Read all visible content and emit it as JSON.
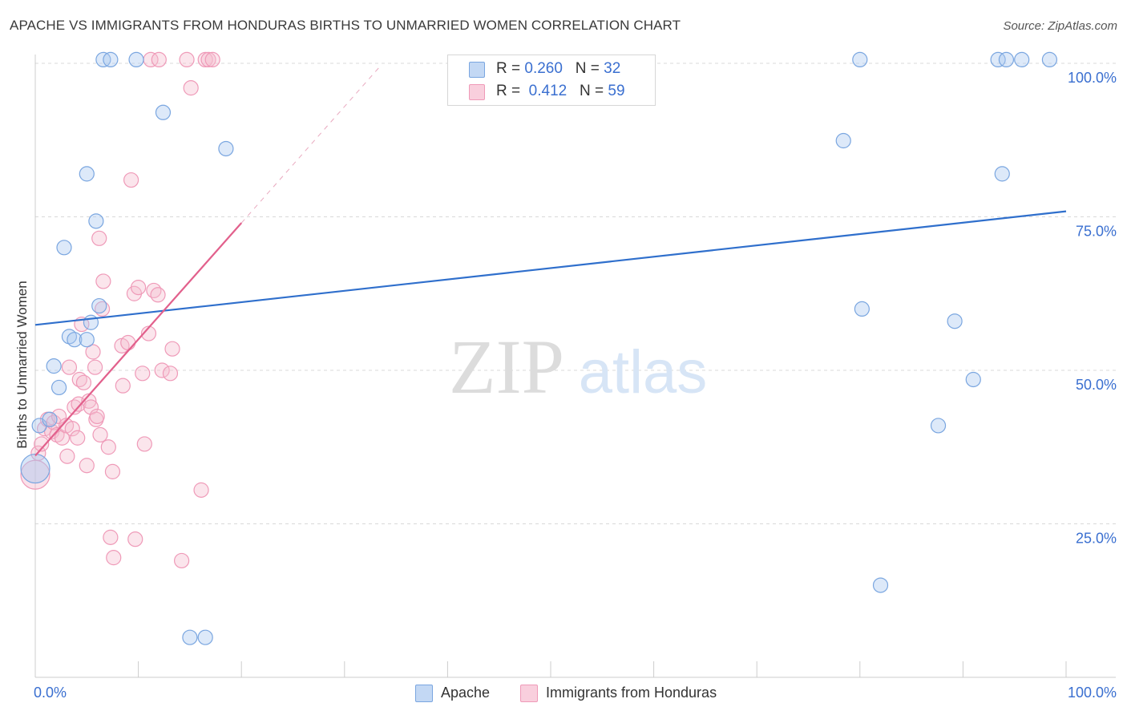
{
  "title": "APACHE VS IMMIGRANTS FROM HONDURAS BIRTHS TO UNMARRIED WOMEN CORRELATION CHART",
  "source": "Source: ZipAtlas.com",
  "watermark": {
    "part1": "ZIP",
    "part2": "atlas"
  },
  "legend_top": {
    "rows": [
      {
        "r_label": "R = ",
        "r_value": "0.260",
        "n_label": "N = ",
        "n_value": "32"
      },
      {
        "r_label": "R = ",
        "r_value": "0.412",
        "n_label": "N = ",
        "n_value": "59"
      }
    ]
  },
  "legend_bottom": [
    {
      "label": "Apache"
    },
    {
      "label": "Immigrants from Honduras"
    }
  ],
  "colors": {
    "apache_fill": "#a9c8f0",
    "apache_stroke": "#7aa6e0",
    "apache_line": "#2f6fcc",
    "honduras_fill": "#f6bdd0",
    "honduras_stroke": "#ef9ab8",
    "honduras_line": "#e2608c",
    "tick_label": "#3a6fd0",
    "grid": "#d9d9d9"
  },
  "chart_data": {
    "type": "scatter",
    "xlabel": "",
    "ylabel": "Births to Unmarried Women",
    "xlim": [
      0,
      100
    ],
    "ylim": [
      0,
      100
    ],
    "x_tick_labels": [
      {
        "value": 0,
        "label": "0.0%"
      },
      {
        "value": 100,
        "label": "100.0%"
      }
    ],
    "y_tick_labels": [
      {
        "value": 25,
        "label": "25.0%"
      },
      {
        "value": 50,
        "label": "50.0%"
      },
      {
        "value": 75,
        "label": "75.0%"
      },
      {
        "value": 100,
        "label": "100.0%"
      }
    ],
    "grid": true,
    "legend_position": "top-center",
    "series": [
      {
        "name": "Apache",
        "r": 0.26,
        "n": 32,
        "trend": {
          "x": [
            0,
            100
          ],
          "y": [
            57.4,
            75.9
          ]
        },
        "points": [
          [
            0,
            34
          ],
          [
            0.4,
            41
          ],
          [
            1.4,
            42
          ],
          [
            1.8,
            50.7
          ],
          [
            2.3,
            47.2
          ],
          [
            2.8,
            70
          ],
          [
            3.3,
            55.5
          ],
          [
            3.8,
            55
          ],
          [
            5.0,
            55
          ],
          [
            5.0,
            82
          ],
          [
            5.4,
            57.8
          ],
          [
            5.9,
            74.3
          ],
          [
            6.2,
            60.5
          ],
          [
            6.6,
            100.6
          ],
          [
            7.3,
            100.6
          ],
          [
            9.8,
            100.6
          ],
          [
            12.4,
            92
          ],
          [
            15.0,
            6.5
          ],
          [
            16.5,
            6.5
          ],
          [
            18.5,
            86.1
          ],
          [
            78.4,
            87.4
          ],
          [
            80.0,
            100.6
          ],
          [
            80.2,
            60
          ],
          [
            82.0,
            15
          ],
          [
            87.6,
            41
          ],
          [
            89.2,
            58
          ],
          [
            91.0,
            48.5
          ],
          [
            93.4,
            100.6
          ],
          [
            93.8,
            82
          ],
          [
            94.2,
            100.6
          ],
          [
            95.7,
            100.6
          ],
          [
            98.4,
            100.6
          ]
        ]
      },
      {
        "name": "Immigrants from Honduras",
        "r": 0.412,
        "n": 59,
        "trend": {
          "x": [
            0,
            20
          ],
          "y": [
            36.1,
            74.0
          ],
          "dash_x": [
            20,
            33.5
          ],
          "dash_y": [
            74.0,
            99.6
          ]
        },
        "points": [
          [
            0,
            33
          ],
          [
            0.3,
            36.5
          ],
          [
            0.6,
            38
          ],
          [
            0.9,
            40.5
          ],
          [
            1.2,
            42
          ],
          [
            1.6,
            40
          ],
          [
            1.8,
            41.5
          ],
          [
            2.1,
            39.5
          ],
          [
            2.3,
            42.5
          ],
          [
            2.6,
            39
          ],
          [
            3.0,
            41
          ],
          [
            3.1,
            36
          ],
          [
            3.3,
            50.5
          ],
          [
            3.6,
            40.5
          ],
          [
            3.8,
            44
          ],
          [
            4.1,
            39
          ],
          [
            4.2,
            44.5
          ],
          [
            4.3,
            48.5
          ],
          [
            4.5,
            57.5
          ],
          [
            4.7,
            48
          ],
          [
            5.0,
            34.5
          ],
          [
            5.2,
            45
          ],
          [
            5.4,
            44
          ],
          [
            5.6,
            53
          ],
          [
            5.8,
            50.5
          ],
          [
            5.9,
            42
          ],
          [
            6.0,
            42.5
          ],
          [
            6.2,
            71.5
          ],
          [
            6.3,
            39.5
          ],
          [
            6.5,
            60
          ],
          [
            6.6,
            64.5
          ],
          [
            7.1,
            37.5
          ],
          [
            7.3,
            22.8
          ],
          [
            7.5,
            33.5
          ],
          [
            7.6,
            19.5
          ],
          [
            8.4,
            54
          ],
          [
            8.5,
            47.5
          ],
          [
            9.0,
            54.5
          ],
          [
            9.3,
            81
          ],
          [
            9.6,
            62.5
          ],
          [
            9.7,
            22.5
          ],
          [
            10.0,
            63.5
          ],
          [
            10.4,
            49.5
          ],
          [
            10.6,
            38
          ],
          [
            11.0,
            56
          ],
          [
            11.2,
            100.6
          ],
          [
            11.5,
            63
          ],
          [
            11.9,
            62.3
          ],
          [
            12.0,
            100.6
          ],
          [
            12.3,
            50
          ],
          [
            13.1,
            49.5
          ],
          [
            13.3,
            53.5
          ],
          [
            14.2,
            19
          ],
          [
            14.7,
            100.6
          ],
          [
            15.1,
            96
          ],
          [
            16.1,
            30.5
          ],
          [
            16.5,
            100.6
          ],
          [
            16.8,
            100.6
          ],
          [
            17.2,
            100.6
          ]
        ]
      }
    ]
  }
}
